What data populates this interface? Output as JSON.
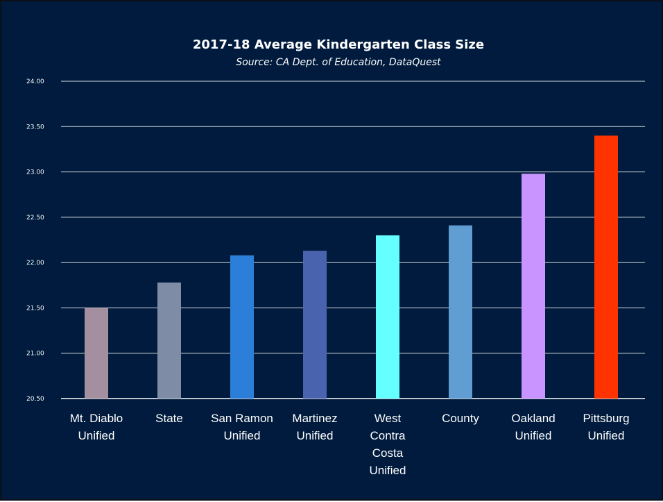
{
  "chart_data": {
    "type": "bar",
    "title": "2017-18 Average Kindergarten Class Size",
    "subtitle": "Source: CA Dept. of Education, DataQuest",
    "categories": [
      [
        "Mt. Diablo",
        "Unified"
      ],
      [
        "State"
      ],
      [
        "San Ramon",
        "Unified"
      ],
      [
        "Martinez",
        "Unified"
      ],
      [
        "West",
        "Contra",
        "Costa",
        "Unified"
      ],
      [
        "County"
      ],
      [
        "Oakland",
        "Unified"
      ],
      [
        "Pittsburg",
        "Unified"
      ]
    ],
    "values": [
      21.5,
      21.78,
      22.08,
      22.13,
      22.3,
      22.41,
      22.98,
      23.4
    ],
    "colors": [
      "#a38f9f",
      "#7f8ca6",
      "#2c7fd8",
      "#4a63ae",
      "#66ffff",
      "#5f9dd2",
      "#c994ff",
      "#ff3300"
    ],
    "ylim": [
      20.5,
      24.0
    ],
    "yticks": [
      "20.50",
      "21.00",
      "21.50",
      "22.00",
      "22.50",
      "23.00",
      "23.50",
      "24.00"
    ],
    "grid": true,
    "background": "#001b3d",
    "text_color": "#ffffff"
  }
}
